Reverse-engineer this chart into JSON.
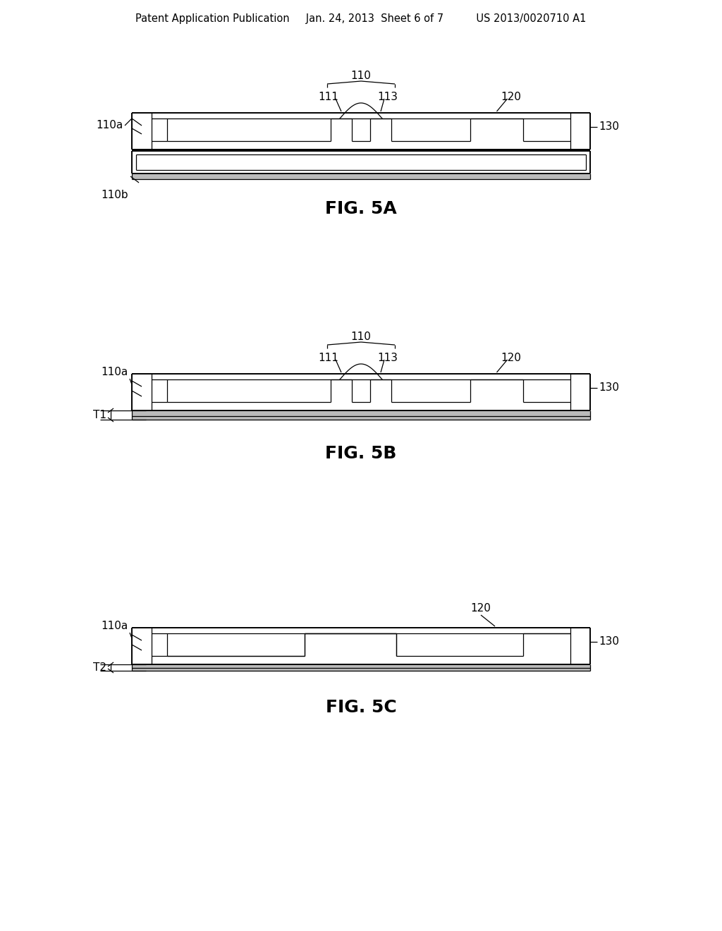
{
  "bg_color": "#ffffff",
  "line_color": "#000000",
  "lw": 1.4,
  "thin_lw": 0.9,
  "header": "Patent Application Publication     Jan. 24, 2013  Sheet 6 of 7          US 2013/0020710 A1",
  "fig5a_label": "FIG. 5A",
  "fig5b_label": "FIG. 5B",
  "fig5c_label": "FIG. 5C"
}
